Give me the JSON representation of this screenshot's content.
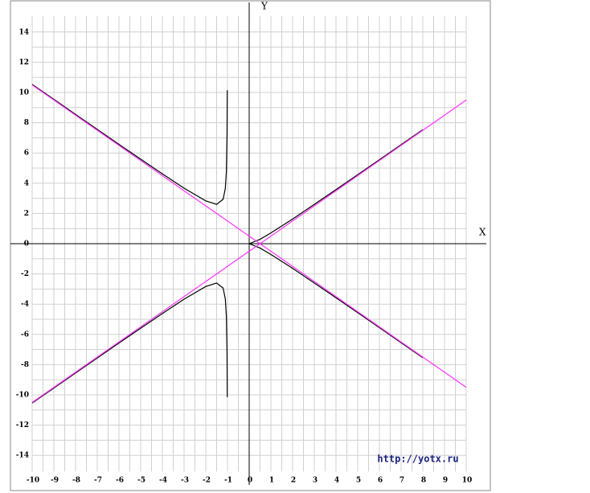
{
  "chart_data": {
    "type": "line",
    "x_label": "X",
    "y_label": "Y",
    "watermark": "http://yotx.ru",
    "x": [
      -10,
      -9,
      -8,
      -7,
      -6,
      -5,
      -4,
      -3,
      -2,
      -1.5,
      -1.2,
      -1.1,
      -1.05,
      -1.02,
      -1.01,
      -0.5,
      0,
      0.5,
      1,
      2,
      3,
      4,
      5,
      6,
      7,
      8,
      9,
      10
    ],
    "series": [
      {
        "color": "#000000",
        "values": [
          10.54,
          9.55,
          8.55,
          7.56,
          6.57,
          5.59,
          4.62,
          3.67,
          2.83,
          2.6,
          2.94,
          3.65,
          4.81,
          7.28,
          10.15,
          null,
          0,
          0.29,
          0.71,
          1.63,
          2.6,
          3.58,
          4.56,
          5.55,
          6.55,
          7.54,
          null,
          null
        ]
      },
      {
        "color": "#000000",
        "values": [
          -10.54,
          -9.55,
          -8.55,
          -7.56,
          -6.57,
          -5.59,
          -4.62,
          -3.67,
          -2.83,
          -2.6,
          -2.94,
          -3.65,
          -4.81,
          -7.28,
          -10.15,
          null,
          0,
          -0.29,
          -0.71,
          -1.63,
          -2.6,
          -3.58,
          -4.56,
          -5.55,
          -6.55,
          -7.54,
          null,
          null
        ]
      },
      {
        "color": "#ff33ff",
        "values": [
          10.5,
          9.5,
          8.5,
          7.5,
          6.5,
          5.5,
          4.5,
          3.5,
          2.5,
          2,
          1.7,
          1.6,
          1.55,
          1.52,
          1.51,
          1,
          0.5,
          0,
          -0.5,
          -1.5,
          -2.5,
          -3.5,
          -4.5,
          -5.5,
          -6.5,
          -7.5,
          -8.5,
          -9.5
        ]
      },
      {
        "color": "#ff33ff",
        "values": [
          -10.5,
          -9.5,
          -8.5,
          -7.5,
          -6.5,
          -5.5,
          -4.5,
          -3.5,
          -2.5,
          -2,
          -1.7,
          -1.6,
          -1.55,
          -1.52,
          -1.51,
          -1,
          -0.5,
          0,
          0.5,
          1.5,
          2.5,
          3.5,
          4.5,
          5.5,
          6.5,
          7.5,
          8.5,
          9.5
        ]
      }
    ],
    "xlim": [
      -11,
      11
    ],
    "ylim": [
      -16,
      16
    ],
    "xticks": [
      -10,
      -9,
      -8,
      -7,
      -6,
      -5,
      -4,
      -3,
      -2,
      -1,
      0,
      1,
      2,
      3,
      4,
      5,
      6,
      7,
      8,
      9,
      10
    ],
    "yticks": [
      -14,
      -12,
      -10,
      -8,
      -6,
      -4,
      -2,
      0,
      2,
      4,
      6,
      8,
      10,
      12,
      14
    ],
    "grid": true
  }
}
